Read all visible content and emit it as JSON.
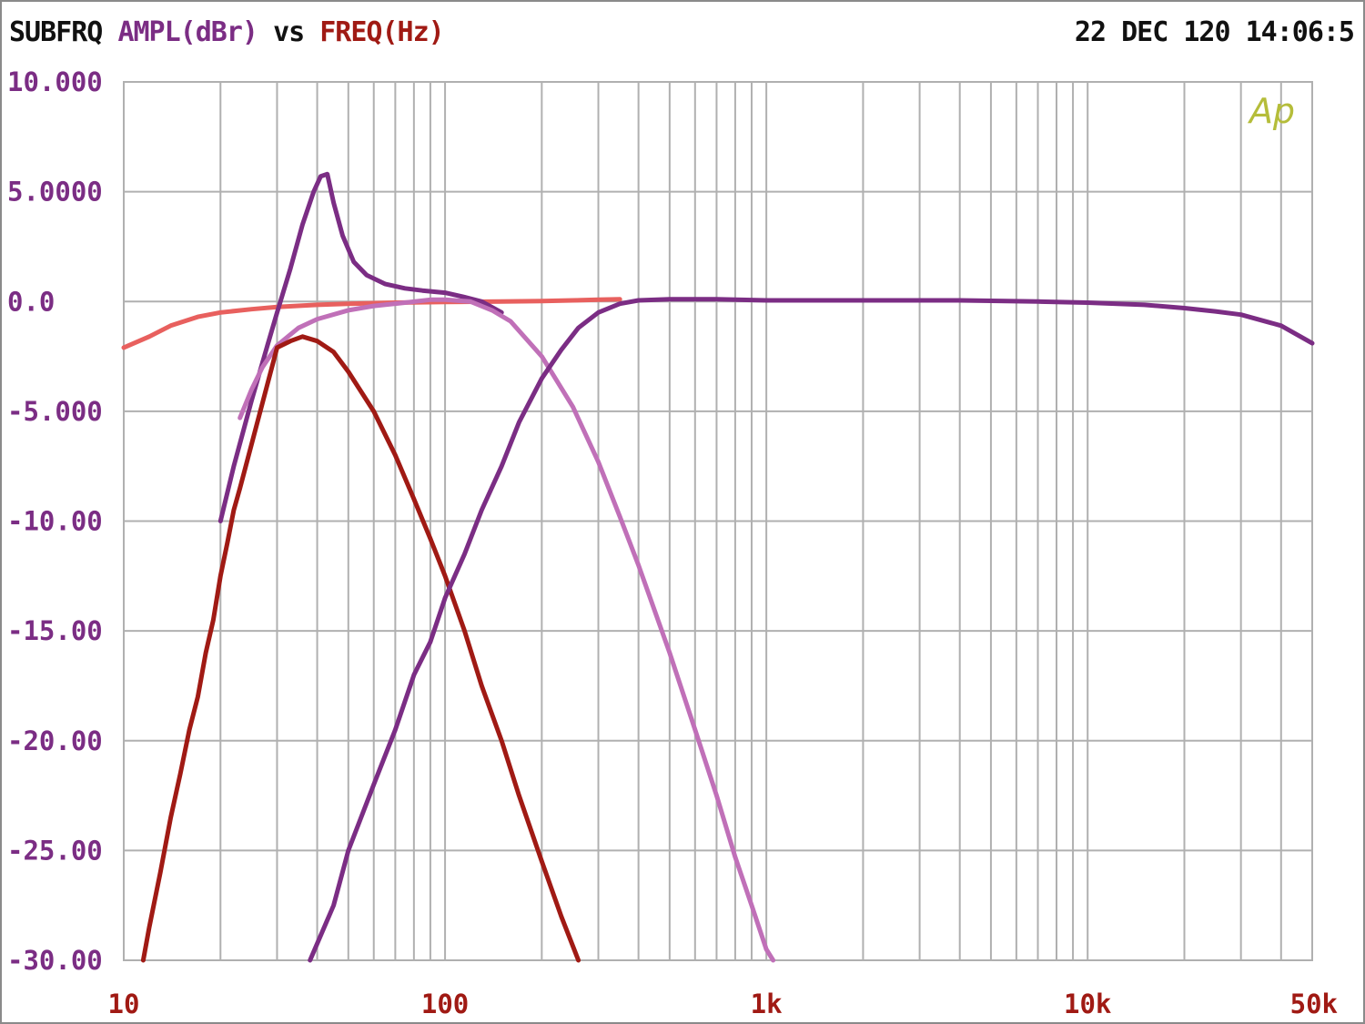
{
  "header": {
    "name": "SUBFRQ",
    "y_quantity": "AMPL(dBr)",
    "vs": "vs",
    "x_quantity": "FREQ(Hz)",
    "timestamp": "22 DEC 120 14:06:5"
  },
  "logo": "Ap",
  "colors": {
    "grid": "#b0b0b0",
    "y_tick_text": "#7b2d84",
    "x_tick_text": "#a01a14",
    "header_text": "#111111",
    "logo": "#b5bd3a"
  },
  "chart_data": {
    "type": "line",
    "x_scale": "log",
    "xlim": [
      10,
      50000
    ],
    "ylim": [
      -30,
      10
    ],
    "grid": true,
    "x_tick_labels": [
      {
        "value": 10,
        "label": "10"
      },
      {
        "value": 100,
        "label": "100"
      },
      {
        "value": 1000,
        "label": "1k"
      },
      {
        "value": 10000,
        "label": "10k"
      },
      {
        "value": 50000,
        "label": "50k"
      }
    ],
    "y_tick_labels": [
      {
        "value": 10,
        "label": "10.000"
      },
      {
        "value": 5,
        "label": "5.0000"
      },
      {
        "value": 0,
        "label": "0.0"
      },
      {
        "value": -5,
        "label": "-5.000"
      },
      {
        "value": -10,
        "label": "-10.00"
      },
      {
        "value": -15,
        "label": "-15.00"
      },
      {
        "value": -20,
        "label": "-20.00"
      },
      {
        "value": -25,
        "label": "-25.00"
      },
      {
        "value": -30,
        "label": "-30.00"
      }
    ],
    "series": [
      {
        "color": "#e8605e",
        "points": [
          [
            10,
            -2.1
          ],
          [
            12,
            -1.6
          ],
          [
            14,
            -1.1
          ],
          [
            17,
            -0.7
          ],
          [
            20,
            -0.5
          ],
          [
            25,
            -0.35
          ],
          [
            30,
            -0.25
          ],
          [
            40,
            -0.15
          ],
          [
            50,
            -0.1
          ],
          [
            70,
            -0.05
          ],
          [
            100,
            -0.02
          ],
          [
            150,
            0
          ],
          [
            200,
            0.02
          ],
          [
            250,
            0.05
          ],
          [
            300,
            0.08
          ],
          [
            350,
            0.1
          ]
        ]
      },
      {
        "color": "#7b2d84",
        "points": [
          [
            20,
            -10
          ],
          [
            22,
            -7.5
          ],
          [
            25,
            -4.5
          ],
          [
            28,
            -2
          ],
          [
            30,
            -0.5
          ],
          [
            33,
            1.5
          ],
          [
            36,
            3.5
          ],
          [
            39,
            5
          ],
          [
            41,
            5.7
          ],
          [
            43,
            5.8
          ],
          [
            45,
            4.5
          ],
          [
            48,
            3
          ],
          [
            52,
            1.8
          ],
          [
            57,
            1.2
          ],
          [
            65,
            0.8
          ],
          [
            75,
            0.6
          ],
          [
            85,
            0.5
          ],
          [
            100,
            0.4
          ],
          [
            115,
            0.2
          ],
          [
            130,
            0
          ],
          [
            150,
            -0.5
          ]
        ]
      },
      {
        "color": "#c070b8",
        "points": [
          [
            23,
            -5.3
          ],
          [
            25,
            -4
          ],
          [
            27,
            -3
          ],
          [
            30,
            -2
          ],
          [
            35,
            -1.2
          ],
          [
            40,
            -0.8
          ],
          [
            50,
            -0.4
          ],
          [
            60,
            -0.2
          ],
          [
            75,
            -0.05
          ],
          [
            90,
            0.08
          ],
          [
            100,
            0.08
          ],
          [
            120,
            0
          ],
          [
            140,
            -0.4
          ],
          [
            160,
            -0.9
          ],
          [
            200,
            -2.5
          ],
          [
            250,
            -4.8
          ],
          [
            300,
            -7.3
          ],
          [
            350,
            -9.8
          ],
          [
            400,
            -12
          ],
          [
            500,
            -16
          ],
          [
            600,
            -19.5
          ],
          [
            700,
            -22.5
          ],
          [
            800,
            -25.3
          ],
          [
            900,
            -27.5
          ],
          [
            1000,
            -29.5
          ],
          [
            1050,
            -30
          ]
        ]
      },
      {
        "color": "#a01a14",
        "points": [
          [
            11.5,
            -30
          ],
          [
            12,
            -28.5
          ],
          [
            13,
            -26
          ],
          [
            14,
            -23.5
          ],
          [
            15,
            -21.5
          ],
          [
            16,
            -19.5
          ],
          [
            17,
            -18
          ],
          [
            18,
            -16
          ],
          [
            19,
            -14.5
          ],
          [
            20,
            -12.5
          ],
          [
            21,
            -11
          ],
          [
            22,
            -9.5
          ],
          [
            23,
            -8.5
          ],
          [
            30,
            -2.1
          ],
          [
            33,
            -1.8
          ],
          [
            36,
            -1.6
          ],
          [
            40,
            -1.8
          ],
          [
            45,
            -2.3
          ],
          [
            50,
            -3.2
          ],
          [
            60,
            -5
          ],
          [
            70,
            -7
          ],
          [
            80,
            -9
          ],
          [
            90,
            -10.8
          ],
          [
            100,
            -12.5
          ],
          [
            115,
            -15
          ],
          [
            130,
            -17.5
          ],
          [
            150,
            -20
          ],
          [
            170,
            -22.5
          ],
          [
            200,
            -25.5
          ],
          [
            230,
            -28
          ],
          [
            260,
            -30
          ]
        ]
      },
      {
        "color": "#7b2d84",
        "points": [
          [
            38,
            -30
          ],
          [
            45,
            -27.5
          ],
          [
            50,
            -25
          ],
          [
            60,
            -22
          ],
          [
            70,
            -19.5
          ],
          [
            80,
            -17
          ],
          [
            90,
            -15.5
          ],
          [
            100,
            -13.5
          ],
          [
            115,
            -11.5
          ],
          [
            130,
            -9.5
          ],
          [
            150,
            -7.5
          ],
          [
            170,
            -5.5
          ],
          [
            200,
            -3.5
          ],
          [
            230,
            -2.2
          ],
          [
            260,
            -1.2
          ],
          [
            300,
            -0.5
          ],
          [
            350,
            -0.1
          ],
          [
            400,
            0.05
          ],
          [
            500,
            0.1
          ],
          [
            700,
            0.1
          ],
          [
            1000,
            0.05
          ],
          [
            2000,
            0.05
          ],
          [
            4000,
            0.05
          ],
          [
            7000,
            0
          ],
          [
            10000,
            -0.05
          ],
          [
            15000,
            -0.15
          ],
          [
            20000,
            -0.3
          ],
          [
            25000,
            -0.45
          ],
          [
            30000,
            -0.6
          ],
          [
            40000,
            -1.1
          ],
          [
            50000,
            -1.9
          ]
        ]
      }
    ]
  }
}
